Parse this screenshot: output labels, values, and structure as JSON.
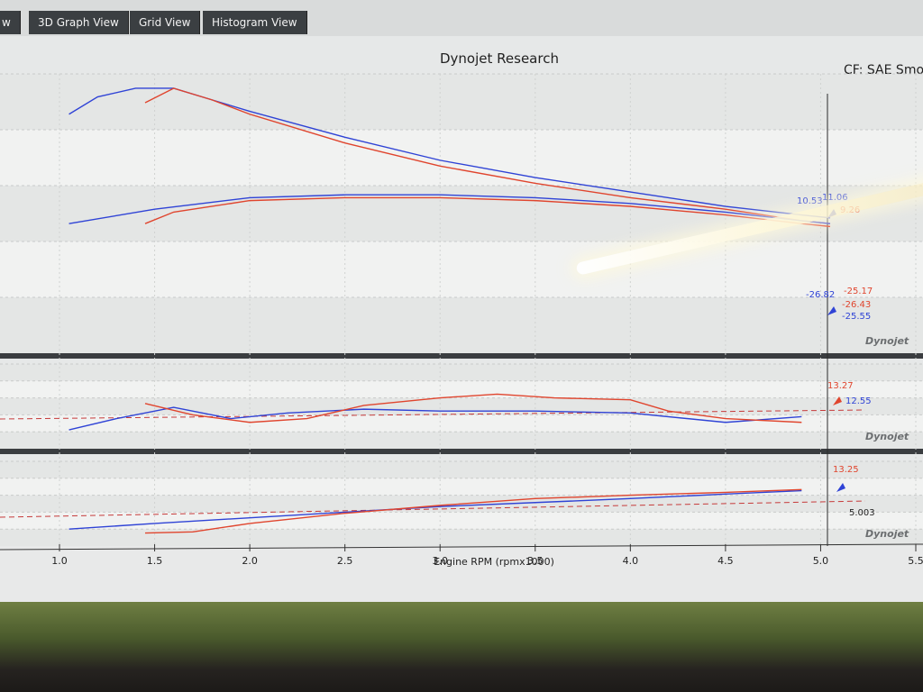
{
  "tabs": [
    {
      "label": "w"
    },
    {
      "label": "3D Graph View"
    },
    {
      "label": "Grid View"
    },
    {
      "label": "Histogram View"
    }
  ],
  "graph": {
    "title": "Dynojet Research",
    "correction_factor": "CF: SAE Smoo",
    "watermark": "Dynojet"
  },
  "colors": {
    "run_blue": "#2f43d6",
    "run_red": "#e0452e",
    "ref_line": "#c63a3a"
  },
  "markers": {
    "top_panel": [
      "10.53",
      "11.06",
      "9.26",
      "-26.82",
      "-25.17",
      "-26.43",
      "-25.55"
    ],
    "middle_panel": [
      "13.27",
      "12.55"
    ],
    "bottom_panel": [
      "13.25",
      "5.003"
    ]
  },
  "chart_data": {
    "type": "line",
    "xlabel": "Engine RPM (rpmx1000)",
    "xticks": [
      "1.0",
      "1.5",
      "2.0",
      "2.5",
      "3.0",
      "3.5",
      "4.0",
      "4.5",
      "5.0",
      "5.5"
    ],
    "xlim": [
      1.0,
      5.5
    ],
    "panels": [
      {
        "name": "top",
        "series": [
          {
            "color": "blue",
            "x": [
              1.05,
              1.2,
              1.4,
              1.6,
              1.8,
              2.0,
              2.5,
              3.0,
              3.5,
              4.0,
              4.5,
              4.9,
              5.05
            ],
            "y": [
              0.38,
              0.44,
              0.47,
              0.47,
              0.43,
              0.39,
              0.3,
              0.22,
              0.16,
              0.11,
              0.06,
              0.03,
              0.02
            ]
          },
          {
            "color": "red",
            "x": [
              1.45,
              1.6,
              1.8,
              2.0,
              2.5,
              3.0,
              3.5,
              4.0,
              4.5,
              4.9,
              5.05
            ],
            "y": [
              0.42,
              0.47,
              0.43,
              0.38,
              0.28,
              0.2,
              0.14,
              0.09,
              0.05,
              0.01,
              0.0
            ]
          },
          {
            "color": "blue",
            "x": [
              1.05,
              1.5,
              2.0,
              2.5,
              3.0,
              3.5,
              4.0,
              4.5,
              4.9,
              5.05
            ],
            "y": [
              0.0,
              0.05,
              0.09,
              0.1,
              0.1,
              0.09,
              0.07,
              0.04,
              0.01,
              0.0
            ]
          },
          {
            "color": "red",
            "x": [
              1.45,
              1.6,
              2.0,
              2.5,
              3.0,
              3.5,
              4.0,
              4.5,
              4.9,
              5.05
            ],
            "y": [
              0.0,
              0.04,
              0.08,
              0.09,
              0.09,
              0.08,
              0.06,
              0.03,
              0.0,
              -0.01
            ]
          }
        ]
      },
      {
        "name": "middle",
        "series": [
          {
            "color": "blue",
            "x": [
              1.05,
              1.3,
              1.6,
              1.9,
              2.2,
              2.6,
              3.0,
              3.5,
              4.0,
              4.5,
              4.9
            ],
            "y": [
              13.0,
              13.6,
              14.2,
              13.6,
              13.9,
              14.1,
              14.0,
              14.0,
              13.9,
              13.4,
              13.7
            ]
          },
          {
            "color": "red",
            "x": [
              1.45,
              1.7,
              2.0,
              2.3,
              2.6,
              3.0,
              3.3,
              3.6,
              4.0,
              4.2,
              4.5,
              4.9
            ],
            "y": [
              14.4,
              13.8,
              13.4,
              13.6,
              14.3,
              14.7,
              14.9,
              14.7,
              14.6,
              14.0,
              13.6,
              13.4
            ]
          }
        ]
      },
      {
        "name": "bottom",
        "series": [
          {
            "color": "blue",
            "x": [
              1.05,
              1.5,
              2.0,
              2.5,
              3.0,
              3.5,
              4.0,
              4.5,
              4.9
            ],
            "y": [
              0.1,
              0.2,
              0.3,
              0.4,
              0.5,
              0.57,
              0.64,
              0.72,
              0.78
            ]
          },
          {
            "color": "red",
            "x": [
              1.45,
              1.7,
              2.0,
              2.5,
              3.0,
              3.5,
              4.0,
              4.5,
              4.9
            ],
            "y": [
              0.03,
              0.05,
              0.2,
              0.38,
              0.52,
              0.64,
              0.7,
              0.75,
              0.8
            ]
          }
        ]
      }
    ]
  }
}
